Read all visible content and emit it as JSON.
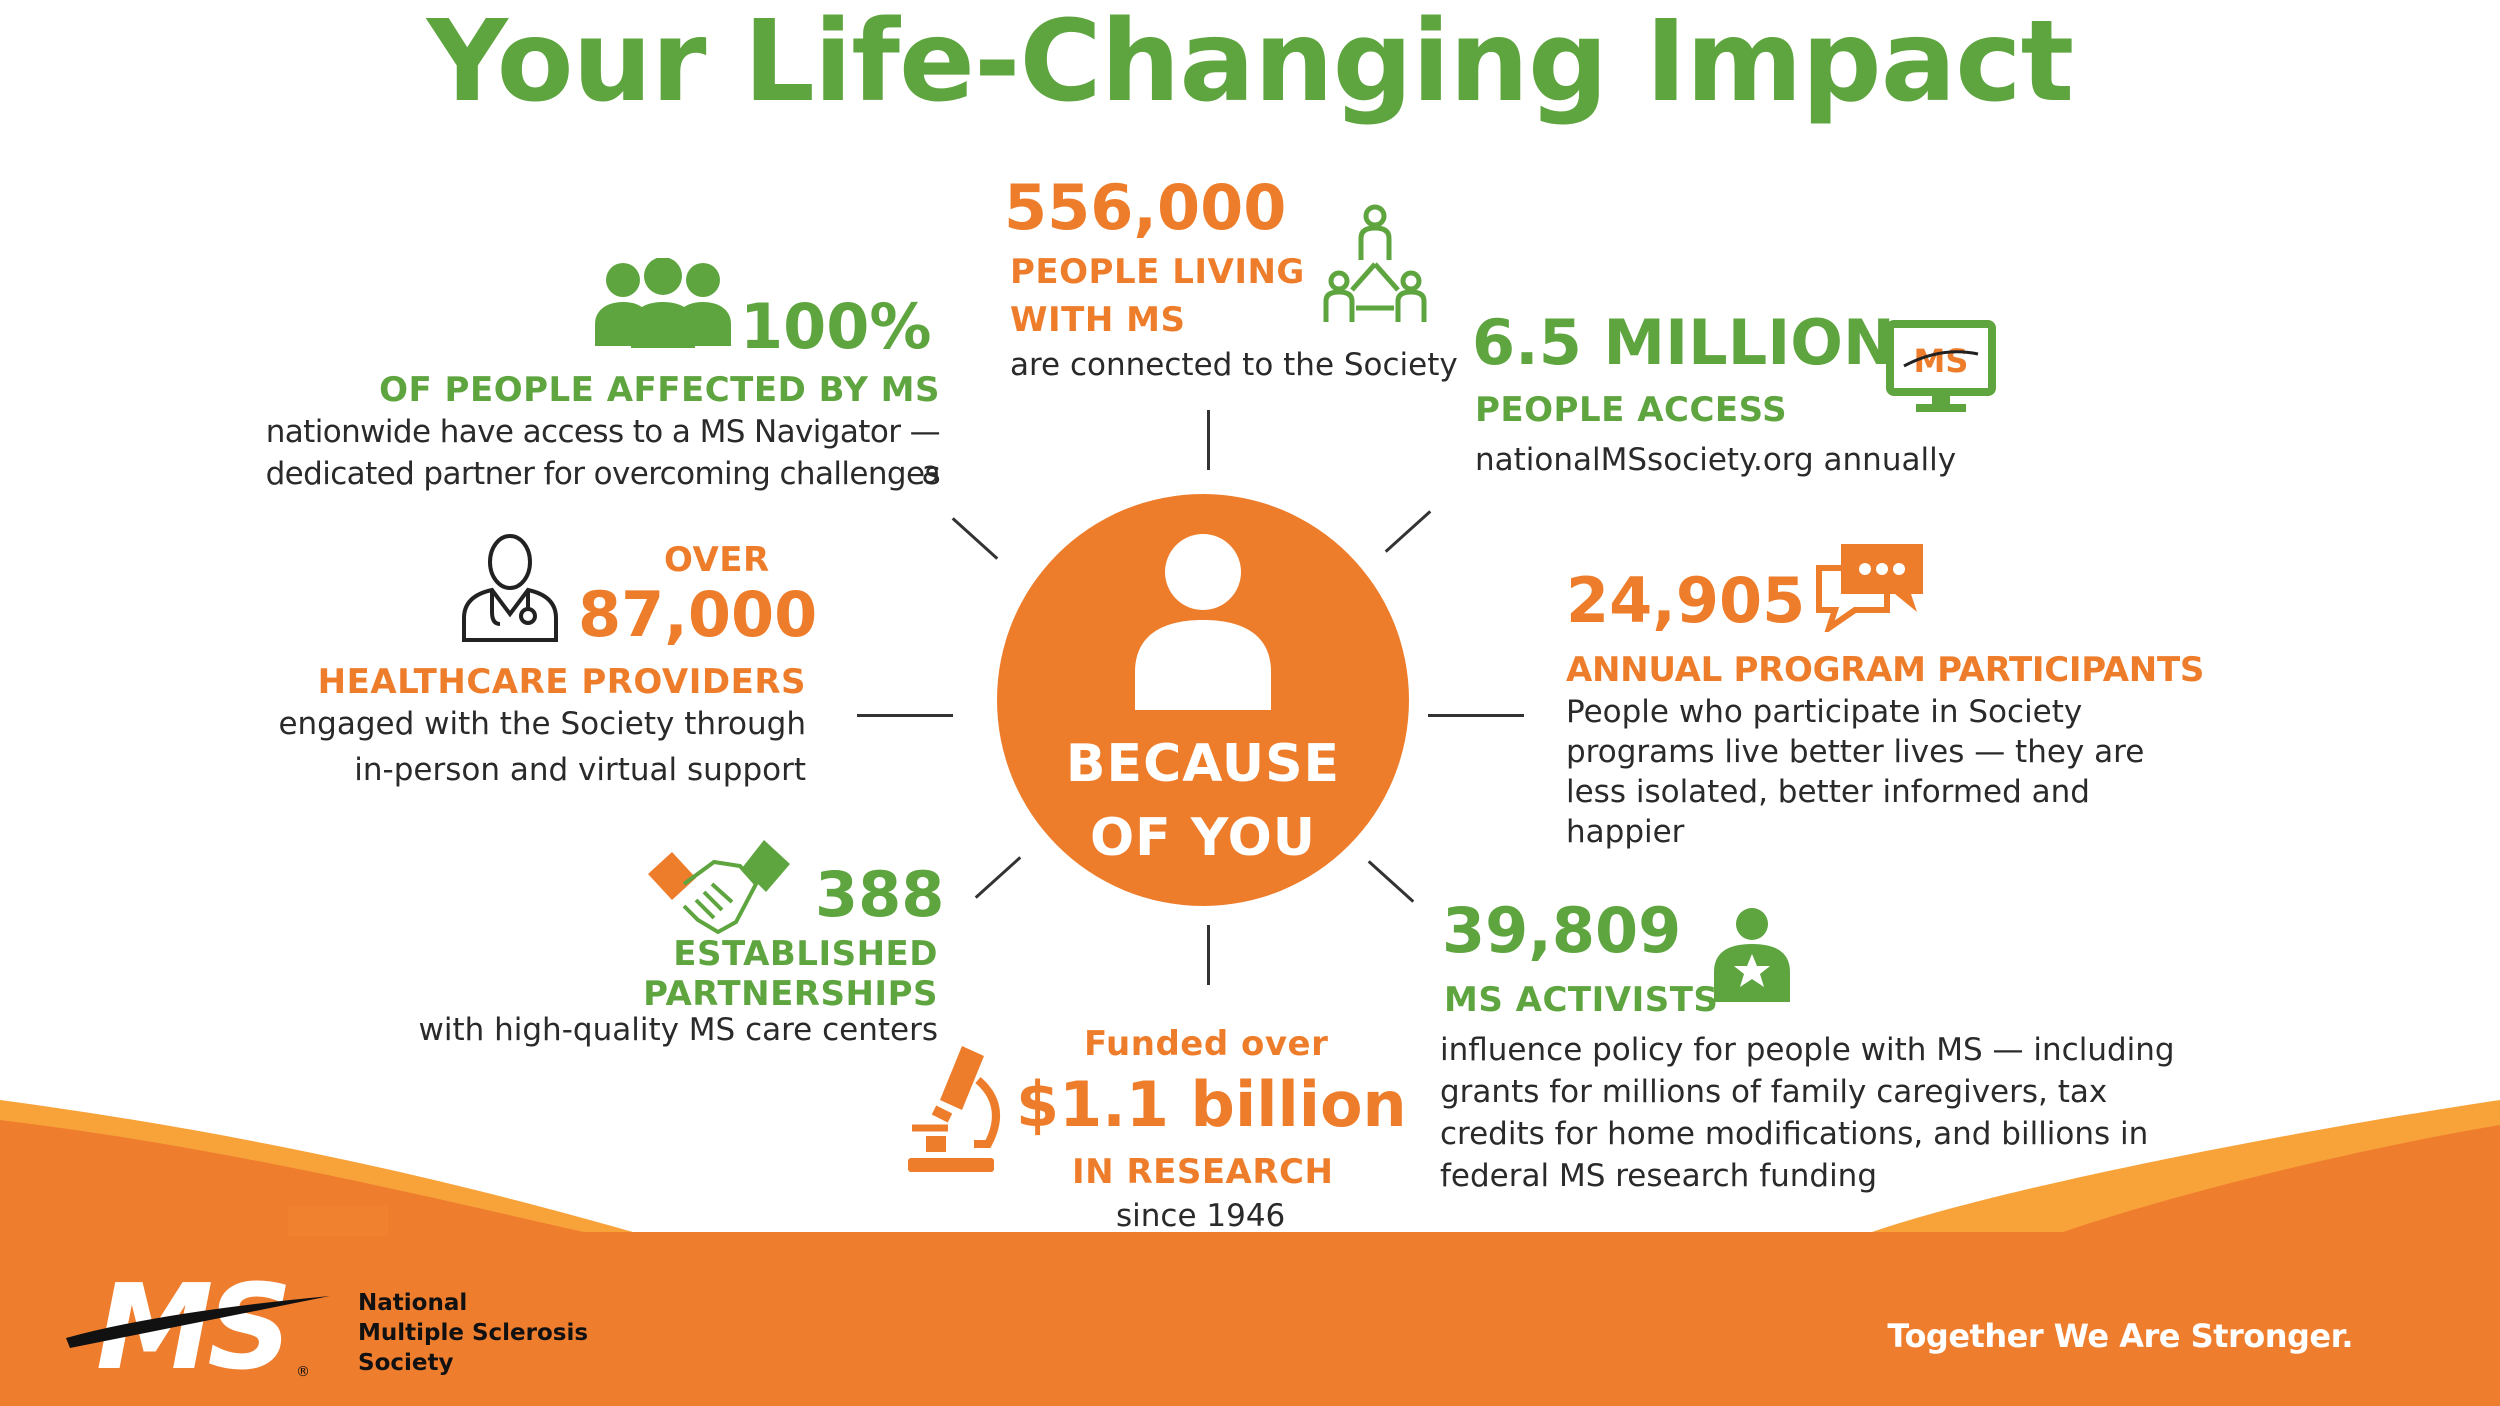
{
  "title": "Your Life-Changing Impact",
  "center": {
    "line1": "BECAUSE",
    "line2": "OF YOU"
  },
  "stats": {
    "navigator": {
      "number": "100%",
      "caption": "OF PEOPLE AFFECTED BY MS",
      "text1": "nationwide have access to a MS Navigator — a",
      "text2": "dedicated partner for overcoming challenges",
      "icon": "group-people-icon"
    },
    "connected": {
      "number": "556,000",
      "caption1": "PEOPLE LIVING",
      "caption2": "WITH MS",
      "text": "are connected to the Society",
      "icon": "network-people-icon"
    },
    "website": {
      "number": "6.5 MILLION",
      "caption": "PEOPLE ACCESS",
      "text": "nationalMSsociety.org  annually",
      "icon": "monitor-icon"
    },
    "providers": {
      "over": "OVER",
      "number": "87,000",
      "caption": "HEALTHCARE  PROVIDERS",
      "text1": "engaged  with  the  Society  through",
      "text2": "in-person  and  virtual  support",
      "icon": "doctor-icon"
    },
    "participants": {
      "number": "24,905",
      "caption": "ANNUAL PROGRAM PARTICIPANTS",
      "text1": "People  who  participate  in Society",
      "text2": "programs  live  better lives — they are",
      "text3": "less isolated, better informed and",
      "text4": "happier",
      "icon": "chat-bubbles-icon"
    },
    "partnerships": {
      "number": "388",
      "caption1": "ESTABLISHED",
      "caption2": "PARTNERSHIPS",
      "text": "with  high-quality  MS care centers",
      "icon": "handshake-icon"
    },
    "research": {
      "pre": "Funded  over",
      "number": "$1.1 billion",
      "caption": "IN RESEARCH",
      "text": "since 1946",
      "icon": "microscope-icon"
    },
    "activists": {
      "number": "39,809",
      "caption": "MS ACTIVISTS",
      "text1": "influence policy for people with MS — including",
      "text2": "grants for millions of family caregivers, tax",
      "text3": "credits for home  modifications,  and  billions   in",
      "text4": "federal MS research funding",
      "icon": "activist-star-icon"
    }
  },
  "footer": {
    "logo_text": "MS",
    "org1": "National",
    "org2": "Multiple Sclerosis",
    "org3": "Society",
    "tagline": "Together We Are Stronger."
  },
  "colors": {
    "green": "#5ea540",
    "orange": "#ee7d2b",
    "footer": "#ef7d2e"
  }
}
